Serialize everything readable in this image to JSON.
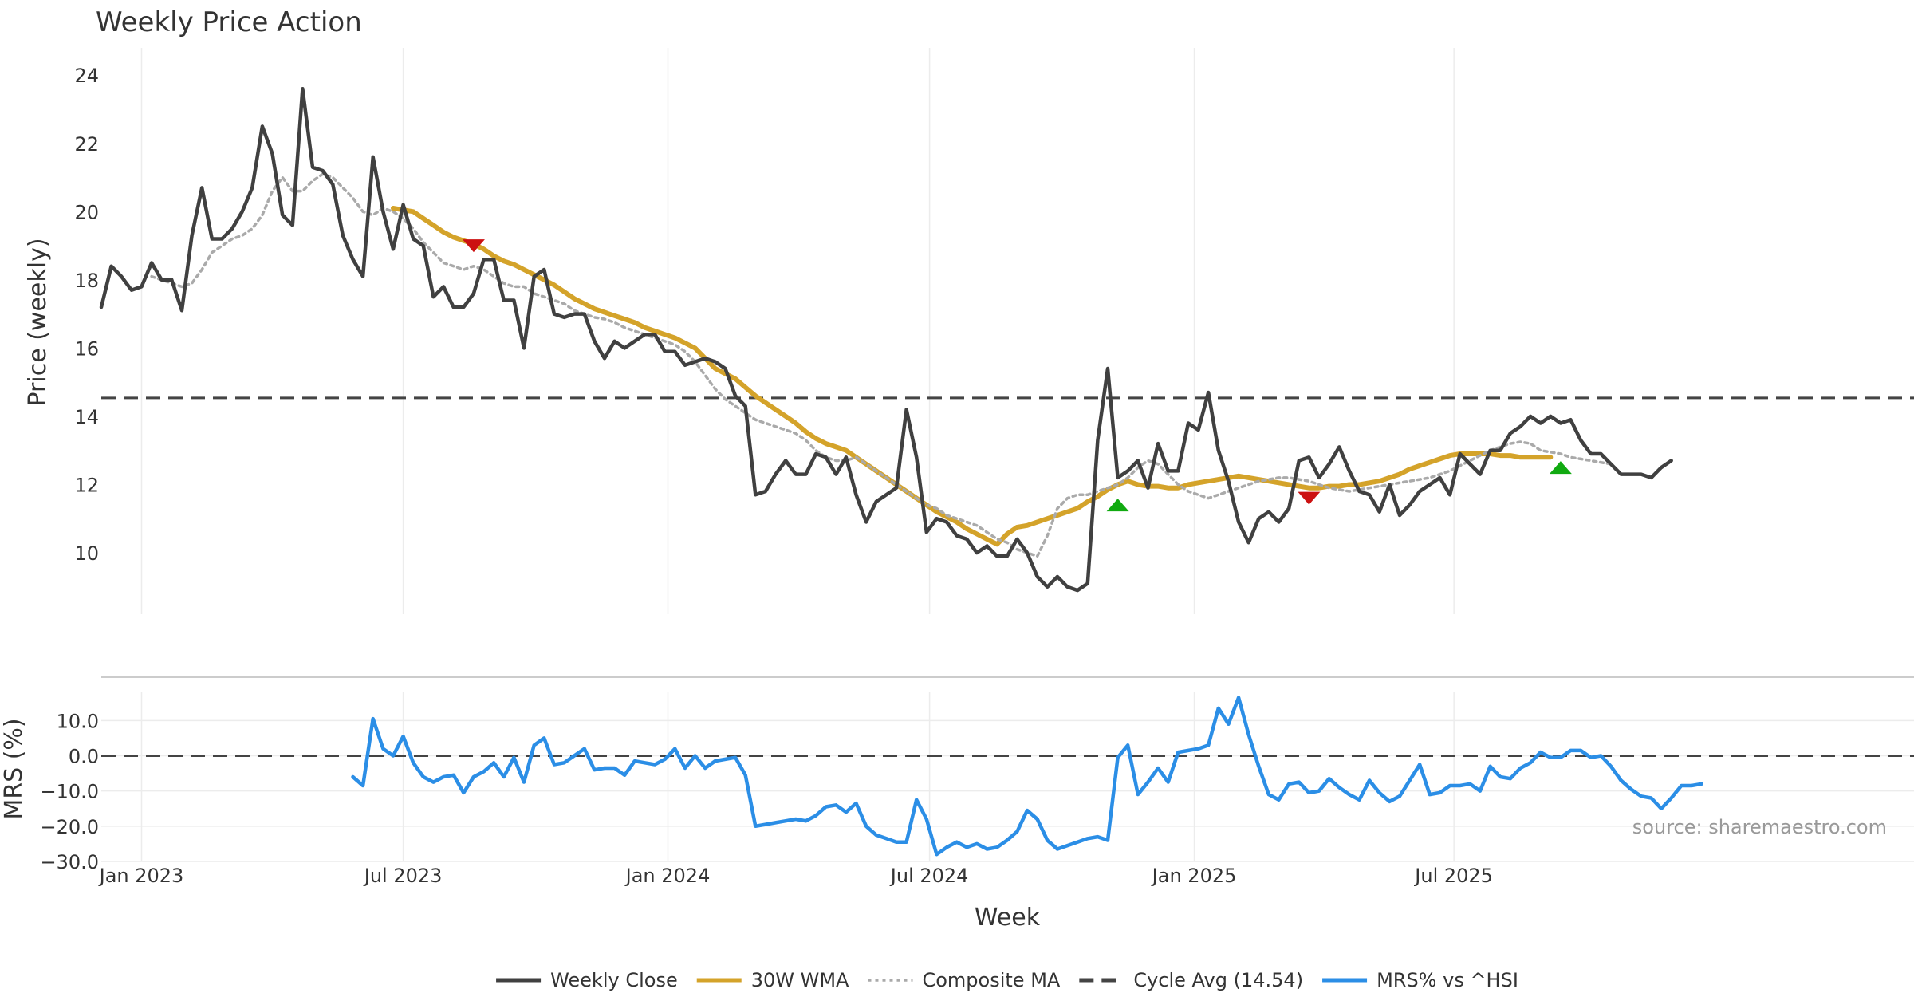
{
  "chart_data": [
    {
      "type": "line",
      "panel": "price",
      "title": "Weekly Price Action",
      "ylabel": "Price (weekly)",
      "ylim": [
        8.2,
        24.8
      ],
      "yticks": [
        "24",
        "22",
        "20",
        "18",
        "16",
        "14",
        "12",
        "10"
      ],
      "grid": "vertical",
      "x_start": "2022-12-05",
      "series": [
        {
          "name": "Weekly Close",
          "color": "#404040",
          "style": "solid",
          "offset": 0,
          "values": [
            17.2,
            18.4,
            18.1,
            17.7,
            17.8,
            18.5,
            18.0,
            18.0,
            17.1,
            19.3,
            20.7,
            19.2,
            19.2,
            19.5,
            20.0,
            20.7,
            22.5,
            21.7,
            19.9,
            19.6,
            23.6,
            21.3,
            21.2,
            20.8,
            19.3,
            18.6,
            18.1,
            21.6,
            20.0,
            18.9,
            20.2,
            19.2,
            19.0,
            17.5,
            17.8,
            17.2,
            17.2,
            17.6,
            18.6,
            18.6,
            17.4,
            17.4,
            16.0,
            18.1,
            18.3,
            17.0,
            16.9,
            17.0,
            17.0,
            16.2,
            15.7,
            16.2,
            16.0,
            16.2,
            16.4,
            16.4,
            15.9,
            15.9,
            15.5,
            15.6,
            15.7,
            15.6,
            15.4,
            14.6,
            14.3,
            11.7,
            11.8,
            12.3,
            12.7,
            12.3,
            12.3,
            12.9,
            12.8,
            12.3,
            12.8,
            11.7,
            10.9,
            11.5,
            11.7,
            11.9,
            14.2,
            12.8,
            10.6,
            11.0,
            10.9,
            10.5,
            10.4,
            10.0,
            10.2,
            9.9,
            9.9,
            10.4,
            10.0,
            9.3,
            9.0,
            9.3,
            9.0,
            8.9,
            9.1,
            13.3,
            15.4,
            12.2,
            12.4,
            12.7,
            11.9,
            13.2,
            12.4,
            12.4,
            13.8,
            13.6,
            14.7,
            13.0,
            12.1,
            10.9,
            10.3,
            11.0,
            11.2,
            10.9,
            11.3,
            12.7,
            12.8,
            12.2,
            12.6,
            13.1,
            12.4,
            11.8,
            11.7,
            11.2,
            12.0,
            11.1,
            11.4,
            11.8,
            12.0,
            12.2,
            11.7,
            12.9,
            12.6,
            12.3,
            13.0,
            13.0,
            13.5,
            13.7,
            14.0,
            13.8,
            14.0,
            13.8,
            13.9,
            13.3,
            12.9,
            12.9,
            12.6,
            12.3,
            12.3,
            12.3,
            12.2,
            12.5,
            12.7
          ]
        },
        {
          "name": "30W WMA",
          "color": "#d4a32a",
          "style": "solid",
          "offset": 29,
          "values": [
            20.1,
            20.05,
            20.0,
            19.8,
            19.6,
            19.4,
            19.25,
            19.15,
            19.05,
            18.9,
            18.7,
            18.55,
            18.45,
            18.3,
            18.15,
            18.0,
            17.85,
            17.65,
            17.45,
            17.3,
            17.15,
            17.05,
            16.95,
            16.85,
            16.75,
            16.6,
            16.5,
            16.4,
            16.3,
            16.15,
            16.0,
            15.7,
            15.4,
            15.25,
            15.1,
            14.85,
            14.6,
            14.4,
            14.2,
            14.0,
            13.8,
            13.55,
            13.35,
            13.2,
            13.1,
            13.0,
            12.8,
            12.6,
            12.4,
            12.2,
            12.0,
            11.8,
            11.6,
            11.4,
            11.2,
            11.05,
            10.9,
            10.7,
            10.55,
            10.4,
            10.25,
            10.55,
            10.75,
            10.8,
            10.9,
            11.0,
            11.1,
            11.2,
            11.3,
            11.5,
            11.65,
            11.85,
            12.0,
            12.1,
            12.0,
            11.95,
            11.95,
            11.9,
            11.9,
            12.0,
            12.05,
            12.1,
            12.15,
            12.2,
            12.25,
            12.2,
            12.15,
            12.1,
            12.05,
            12.0,
            11.95,
            11.9,
            11.9,
            11.95,
            11.95,
            12.0,
            12.0,
            12.05,
            12.1,
            12.2,
            12.3,
            12.45,
            12.55,
            12.65,
            12.75,
            12.85,
            12.9,
            12.9,
            12.9,
            12.9,
            12.85,
            12.85,
            12.8,
            12.8,
            12.8,
            12.8
          ]
        },
        {
          "name": "Composite MA",
          "color": "#aaaaaa",
          "style": "dotted",
          "offset": 5,
          "values": [
            18.1,
            18.0,
            17.9,
            17.8,
            17.9,
            18.3,
            18.8,
            19.0,
            19.2,
            19.3,
            19.5,
            19.9,
            20.6,
            21.0,
            20.6,
            20.6,
            20.9,
            21.1,
            21.0,
            20.7,
            20.4,
            20.0,
            19.9,
            20.1,
            20.0,
            19.8,
            19.5,
            19.1,
            18.8,
            18.5,
            18.4,
            18.3,
            18.4,
            18.3,
            18.1,
            17.9,
            17.8,
            17.8,
            17.6,
            17.5,
            17.4,
            17.3,
            17.1,
            17.0,
            16.9,
            16.85,
            16.75,
            16.6,
            16.5,
            16.4,
            16.3,
            16.2,
            16.1,
            15.9,
            15.6,
            15.2,
            14.8,
            14.5,
            14.3,
            14.1,
            13.9,
            13.8,
            13.7,
            13.6,
            13.5,
            13.3,
            13.0,
            12.8,
            12.7,
            12.7,
            12.8,
            12.6,
            12.4,
            12.2,
            12.0,
            11.8,
            11.6,
            11.4,
            11.3,
            11.1,
            11.0,
            10.9,
            10.8,
            10.6,
            10.4,
            10.3,
            10.1,
            10.0,
            9.9,
            10.5,
            11.3,
            11.6,
            11.7,
            11.7,
            11.8,
            11.9,
            12.0,
            12.2,
            12.5,
            12.7,
            12.6,
            12.3,
            12.0,
            11.8,
            11.7,
            11.6,
            11.7,
            11.8,
            11.9,
            12.0,
            12.1,
            12.15,
            12.2,
            12.2,
            12.15,
            12.1,
            12.0,
            11.9,
            11.85,
            11.8,
            11.85,
            11.9,
            11.95,
            12.0,
            12.05,
            12.1,
            12.15,
            12.2,
            12.3,
            12.4,
            12.55,
            12.7,
            12.85,
            13.0,
            13.1,
            13.2,
            13.25,
            13.2,
            13.0,
            12.95,
            12.9,
            12.8,
            12.75,
            12.7,
            12.65,
            12.6
          ]
        },
        {
          "name": "Cycle Avg (14.54)",
          "color": "#444444",
          "style": "dashed",
          "constant": 14.54
        }
      ],
      "markers": [
        {
          "type": "sell",
          "symbol": "down-triangle",
          "color": "#cc1111",
          "index": 37,
          "value": 19.0
        },
        {
          "type": "buy",
          "symbol": "up-triangle",
          "color": "#11aa11",
          "index": 101,
          "value": 11.4
        },
        {
          "type": "sell",
          "symbol": "down-triangle",
          "color": "#cc1111",
          "index": 120,
          "value": 11.6
        },
        {
          "type": "buy",
          "symbol": "up-triangle",
          "color": "#11aa11",
          "index": 145,
          "value": 12.5
        }
      ]
    },
    {
      "type": "line",
      "panel": "mrs",
      "ylabel": "MRS (%)",
      "ylim": [
        -30,
        18
      ],
      "yticks": [
        "10.0",
        "0.0",
        "−10.0",
        "−20.0",
        "−30.0"
      ],
      "xlabel": "Week",
      "xticks": [
        {
          "label": "Jan 2023",
          "index": 4
        },
        {
          "label": "Jul 2023",
          "index": 30
        },
        {
          "label": "Jan 2024",
          "index": 56.3
        },
        {
          "label": "Jul 2024",
          "index": 82.3
        },
        {
          "label": "Jan 2025",
          "index": 108.6
        },
        {
          "label": "Jul 2025",
          "index": 134.4
        }
      ],
      "series": [
        {
          "name": "MRS% vs ^HSI",
          "color": "#2b8ee6",
          "style": "solid",
          "offset": 25,
          "values": [
            -6,
            -8.5,
            10.5,
            2,
            0,
            5.5,
            -2,
            -6,
            -7.5,
            -6,
            -5.5,
            -10.5,
            -6,
            -4.5,
            -2,
            -6,
            -0.5,
            -7.5,
            3,
            5,
            -2.5,
            -2,
            0,
            2,
            -4,
            -3.5,
            -3.5,
            -5.5,
            -1.5,
            -2,
            -2.5,
            -1,
            2,
            -3.5,
            0,
            -3.5,
            -1.5,
            -1,
            -0.5,
            -5.5,
            -20,
            -19.5,
            -19,
            -18.5,
            -18,
            -18.5,
            -17,
            -14.5,
            -14,
            -16,
            -13.5,
            -20,
            -22.5,
            -23.5,
            -24.5,
            -24.5,
            -12.5,
            -18,
            -28,
            -26,
            -24.5,
            -26,
            -25,
            -26.5,
            -26,
            -24,
            -21.5,
            -15.5,
            -18,
            -24,
            -26.5,
            -25.5,
            -24.5,
            -23.5,
            -23,
            -24,
            -0.5,
            3,
            -11,
            -7.5,
            -3.5,
            -7.5,
            1,
            1.5,
            2,
            3,
            13.5,
            9,
            16.5,
            6,
            -3,
            -11,
            -12.5,
            -8,
            -7.5,
            -10.5,
            -10,
            -6.5,
            -9,
            -11,
            -12.5,
            -7,
            -10.5,
            -13,
            -11.5,
            -7,
            -2.5,
            -11,
            -10.5,
            -8.5,
            -8.5,
            -8,
            -10,
            -3,
            -6,
            -6.5,
            -3.5,
            -2,
            1,
            -0.5,
            -0.5,
            1.5,
            1.5,
            -0.5,
            0,
            -3,
            -7,
            -9.5,
            -11.5,
            -12,
            -15,
            -12,
            -8.5,
            -8.5,
            -8
          ]
        }
      ],
      "reference_line": {
        "value": 0,
        "style": "dashed",
        "color": "#444444"
      },
      "annotation": "source: sharemaestro.com"
    }
  ],
  "legend": {
    "placement": "bottom-center",
    "items": [
      {
        "label": "Weekly Close",
        "color": "#404040",
        "style": "solid"
      },
      {
        "label": "30W WMA",
        "color": "#d4a32a",
        "style": "solid"
      },
      {
        "label": "Composite MA",
        "color": "#aaaaaa",
        "style": "dotted"
      },
      {
        "label": "Cycle Avg (14.54)",
        "color": "#444444",
        "style": "dashed"
      },
      {
        "label": "MRS% vs ^HSI",
        "color": "#2b8ee6",
        "style": "solid"
      }
    ]
  }
}
